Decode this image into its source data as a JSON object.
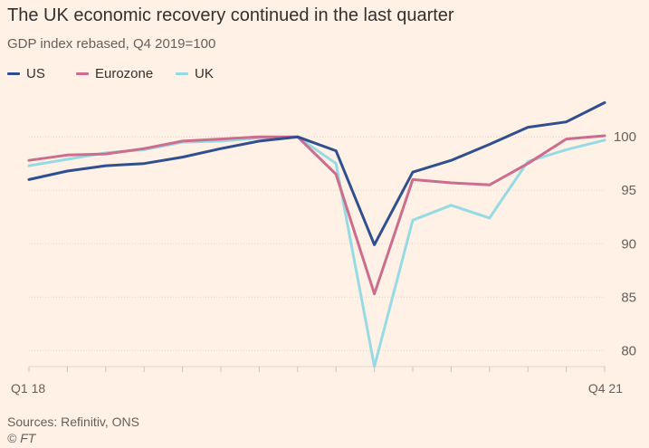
{
  "chart_data": {
    "type": "line",
    "title": "The UK economic recovery continued in the last quarter",
    "subtitle": "GDP index rebased, Q4 2019=100",
    "x_tick_labels": [
      "Q1 18",
      "Q4 21"
    ],
    "categories": [
      "Q1 18",
      "Q2 18",
      "Q3 18",
      "Q4 18",
      "Q1 19",
      "Q2 19",
      "Q3 19",
      "Q4 19",
      "Q1 20",
      "Q2 20",
      "Q3 20",
      "Q4 20",
      "Q1 21",
      "Q2 21",
      "Q3 21",
      "Q4 21"
    ],
    "ylim": [
      78.5,
      104
    ],
    "yticks": [
      80,
      85,
      90,
      95,
      100
    ],
    "grid": true,
    "legend_position": "top-left",
    "series": [
      {
        "name": "US",
        "color": "#2f4f8f",
        "values": [
          96.0,
          96.8,
          97.3,
          97.5,
          98.1,
          98.9,
          99.6,
          100.0,
          98.7,
          89.9,
          96.7,
          97.8,
          99.3,
          100.9,
          101.4,
          103.2
        ]
      },
      {
        "name": "Eurozone",
        "color": "#cc6d8e",
        "values": [
          97.8,
          98.3,
          98.4,
          98.9,
          99.6,
          99.8,
          100.0,
          100.0,
          96.5,
          85.3,
          96.0,
          95.7,
          95.5,
          97.5,
          99.8,
          100.1
        ]
      },
      {
        "name": "UK",
        "color": "#96dbe3",
        "values": [
          97.3,
          97.9,
          98.5,
          98.8,
          99.5,
          99.6,
          99.9,
          100.0,
          97.5,
          78.5,
          92.2,
          93.6,
          92.4,
          97.7,
          98.8,
          99.7
        ]
      }
    ]
  },
  "footer": {
    "source": "Sources: Refinitiv, ONS",
    "copyright": "© FT"
  }
}
